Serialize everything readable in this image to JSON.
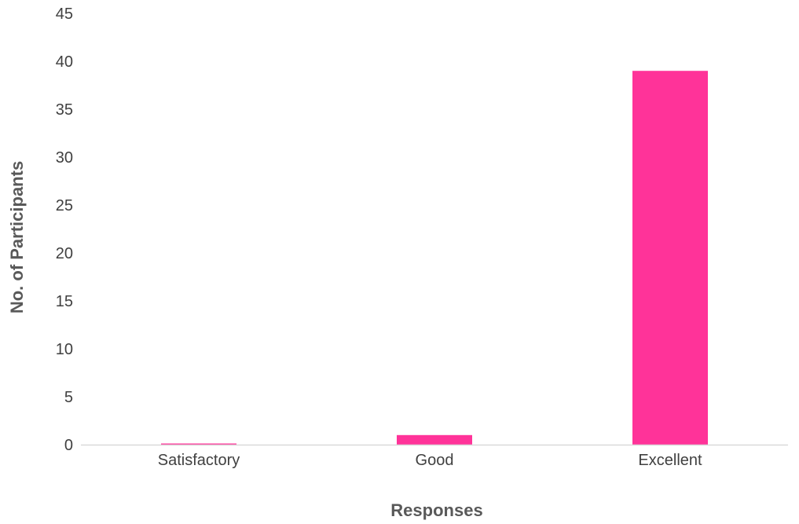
{
  "chart_data": {
    "type": "bar",
    "categories": [
      "Satisfactory",
      "Good",
      "Excellent"
    ],
    "values": [
      0,
      1,
      39
    ],
    "xlabel": "Responses",
    "ylabel": "No. of Participants",
    "ylim": [
      0,
      45
    ],
    "yticks": [
      0,
      5,
      10,
      15,
      20,
      25,
      30,
      35,
      40,
      45
    ],
    "grid": false,
    "bar_color": "#ff3399",
    "axis_color": "#d9d9d9"
  }
}
